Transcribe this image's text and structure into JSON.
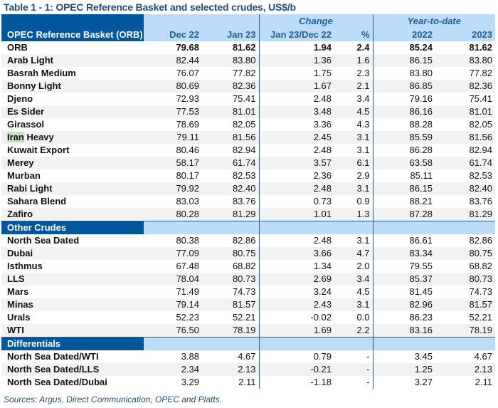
{
  "title": "Table 1 - 1: OPEC Reference Basket and selected crudes, US$/b",
  "header": {
    "group_change": "Change",
    "group_ytd": "Year-to-date",
    "label": "OPEC Reference Basket (ORB)",
    "cols": [
      "Dec 22",
      "Jan 23",
      "Jan 23/Dec 22",
      "%",
      "2022",
      "2023"
    ]
  },
  "opec_rows": [
    [
      "ORB",
      "79.68",
      "81.62",
      "1.94",
      "2.4",
      "85.24",
      "81.62"
    ],
    [
      "Arab Light",
      "82.44",
      "83.80",
      "1.36",
      "1.6",
      "86.15",
      "83.80"
    ],
    [
      "Basrah Medium",
      "76.07",
      "77.82",
      "1.75",
      "2.3",
      "83.80",
      "77.82"
    ],
    [
      "Bonny Light",
      "80.69",
      "82.36",
      "1.67",
      "2.1",
      "86.85",
      "82.36"
    ],
    [
      "Djeno",
      "72.93",
      "75.41",
      "2.48",
      "3.4",
      "79.16",
      "75.41"
    ],
    [
      "Es Sider",
      "77.53",
      "81.01",
      "3.48",
      "4.5",
      "86.16",
      "81.01"
    ],
    [
      "Girassol",
      "78.69",
      "82.05",
      "3.36",
      "4.3",
      "88.28",
      "82.05"
    ],
    [
      "Iran Heavy",
      "79.11",
      "81.56",
      "2.45",
      "3.1",
      "85.59",
      "81.56"
    ],
    [
      "Kuwait Export",
      "80.46",
      "82.94",
      "2.48",
      "3.1",
      "86.28",
      "82.94"
    ],
    [
      "Merey",
      "58.17",
      "61.74",
      "3.57",
      "6.1",
      "63.58",
      "61.74"
    ],
    [
      "Murban",
      "80.17",
      "82.53",
      "2.36",
      "2.9",
      "85.11",
      "82.53"
    ],
    [
      "Rabi Light",
      "79.92",
      "82.40",
      "2.48",
      "3.1",
      "86.15",
      "82.40"
    ],
    [
      "Sahara Blend",
      "83.03",
      "83.76",
      "0.73",
      "0.9",
      "88.21",
      "83.76"
    ],
    [
      "Zafiro",
      "80.28",
      "81.29",
      "1.01",
      "1.3",
      "87.28",
      "81.29"
    ]
  ],
  "other_label": "Other Crudes",
  "other_rows": [
    [
      "North Sea Dated",
      "80.38",
      "82.86",
      "2.48",
      "3.1",
      "86.61",
      "82.86"
    ],
    [
      "Dubai",
      "77.09",
      "80.75",
      "3.66",
      "4.7",
      "83.34",
      "80.75"
    ],
    [
      "Isthmus",
      "67.48",
      "68.82",
      "1.34",
      "2.0",
      "79.55",
      "68.82"
    ],
    [
      "LLS",
      "78.04",
      "80.73",
      "2.69",
      "3.4",
      "85.37",
      "80.73"
    ],
    [
      "Mars",
      "71.49",
      "74.73",
      "3.24",
      "4.5",
      "81.45",
      "74.73"
    ],
    [
      "Minas",
      "79.14",
      "81.57",
      "2.43",
      "3.1",
      "82.96",
      "81.57"
    ],
    [
      "Urals",
      "52.23",
      "52.21",
      "-0.02",
      "0.0",
      "86.23",
      "52.21"
    ],
    [
      "WTI",
      "76.50",
      "78.19",
      "1.69",
      "2.2",
      "83.16",
      "78.19"
    ]
  ],
  "diff_label": "Differentials",
  "diff_rows": [
    [
      "North Sea Dated/WTI",
      "3.88",
      "4.67",
      "0.79",
      "-",
      "3.45",
      "4.67"
    ],
    [
      "North Sea Dated/LLS",
      "2.34",
      "2.13",
      "-0.21",
      "-",
      "1.25",
      "2.13"
    ],
    [
      "North Sea Dated/Dubai",
      "3.29",
      "2.11",
      "-1.18",
      "-",
      "3.27",
      "2.11"
    ]
  ],
  "sources": "Sources:  Argus, Direct Communication, OPEC and Platts.",
  "colors": {
    "dark_blue": "#02569b",
    "light_blue": "#bddcf7",
    "highlight": "#c6e0c6"
  }
}
